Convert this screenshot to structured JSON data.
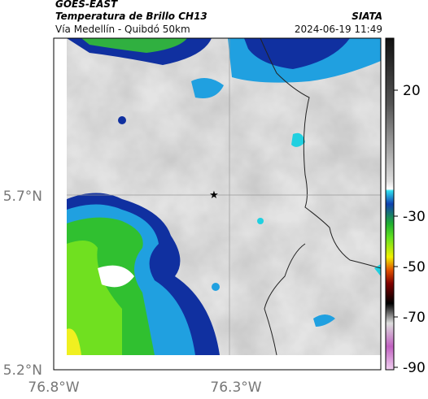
{
  "header": {
    "source": "GOES-EAST",
    "title": "Temperatura de Brillo CH13",
    "subtitle": "Vía Medellín - Quibdó 50km",
    "agency": "SIATA",
    "datetime": "2024-06-19 11:49"
  },
  "map": {
    "lat_labels": [
      "5.7°N",
      "5.2°N"
    ],
    "lon_labels": [
      "76.8°W",
      "76.3°W"
    ]
  },
  "colorbar": {
    "ticks": [
      20,
      -30,
      -50,
      -70,
      -90
    ]
  }
}
